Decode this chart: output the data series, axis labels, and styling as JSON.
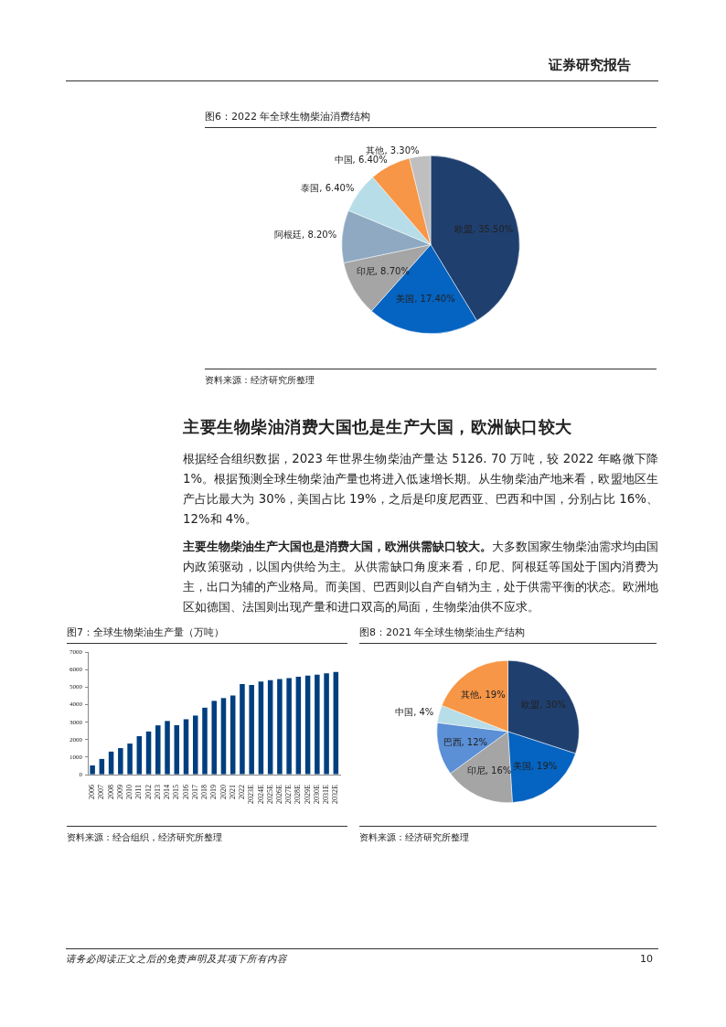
{
  "chart_data": [
    {
      "type": "pie",
      "title": "图6：2022 年全球生物柴油消费结构",
      "categories": [
        "欧盟",
        "美国",
        "印尼",
        "阿根廷",
        "泰国",
        "中国",
        "其他"
      ],
      "values": [
        35.5,
        17.4,
        8.7,
        8.2,
        6.4,
        6.4,
        3.3
      ],
      "value_labels": [
        "35.50%",
        "17.40%",
        "8.70%",
        "8.20%",
        "6.40%",
        "6.40%",
        "3.30%"
      ],
      "colors": [
        "#1f3f6e",
        "#0563c1",
        "#a5a5a5",
        "#8ea9c1",
        "#b7dde8",
        "#f79646",
        "#bfbfbf"
      ],
      "legend": false,
      "annotations": [
        "资料来源：经济研究所整理"
      ]
    },
    {
      "type": "other",
      "title": "主要生物柴油消费大国也是生产大国，欧洲缺口较大",
      "annotations": [
        "根据经合组织数据，2023 年世界生物柴油产量达 5126. 70 万吨，较 2022 年略微下降 1%。根据预测全球生物柴油产量也将进入低速增长期。从生物柴油产地来看，欧盟地区生产占比最大为 30%，美国占比 19%，之后是印度尼西亚、巴西和中国，分别占比 16%、12%和 4%。",
        "主要生物柴油生产大国也是消费大国，欧洲供需缺口较大。",
        "大多数国家生物柴油需求均由国内政策驱动，以国内供给为主。从供需缺口角度来看，印尼、阿根廷等国处于国内消费为主，出口为辅的产业格局。而美国、巴西则以自产自销为主，处于供需平衡的状态。欧洲地区如德国、法国则出现产量和进口双高的局面，生物柴油供不应求。",
        "证券研究报告",
        "请务必阅读正文之后的免责声明及其项下所有内容",
        "10"
      ]
    },
    {
      "type": "bar",
      "title": "图7：全球生物柴油生产量（万吨）",
      "categories": [
        "2006",
        "2007",
        "2008",
        "2009",
        "2010",
        "2011",
        "2012",
        "2013",
        "2014",
        "2015",
        "2016",
        "2017",
        "2018",
        "2019",
        "2020",
        "2021",
        "2022",
        "2023E",
        "2024E",
        "2025E",
        "2026E",
        "2027E",
        "2028E",
        "2029E",
        "2030E",
        "2031E",
        "2032E"
      ],
      "series": [
        {
          "color": "#003f7f",
          "values": [
            530,
            900,
            1320,
            1520,
            1780,
            2200,
            2470,
            2820,
            3070,
            2830,
            3170,
            3380,
            3830,
            4220,
            4380,
            4530,
            5180,
            5130,
            5320,
            5400,
            5470,
            5520,
            5600,
            5670,
            5720,
            5800,
            5880
          ]
        }
      ],
      "ylim": [
        0,
        7000
      ],
      "yticks": [
        0,
        1000,
        2000,
        3000,
        4000,
        5000,
        6000,
        7000
      ],
      "grid": false,
      "legend": false,
      "annotations": [
        "资料来源：经合组织，经济研究所整理"
      ]
    },
    {
      "type": "pie",
      "title": "图8：2021 年全球生物柴油生产结构",
      "categories": [
        "欧盟",
        "美国",
        "印尼",
        "巴西",
        "中国",
        "其他"
      ],
      "values": [
        30,
        19,
        16,
        12,
        4,
        19
      ],
      "value_labels": [
        "30%",
        "19%",
        "16%",
        "12%",
        "4%",
        "19%"
      ],
      "colors": [
        "#1f3f6e",
        "#0563c1",
        "#a5a5a5",
        "#5b8fd6",
        "#b7dde8",
        "#f79646"
      ],
      "legend": false,
      "annotations": [
        "资料来源：经济研究所整理"
      ]
    }
  ]
}
